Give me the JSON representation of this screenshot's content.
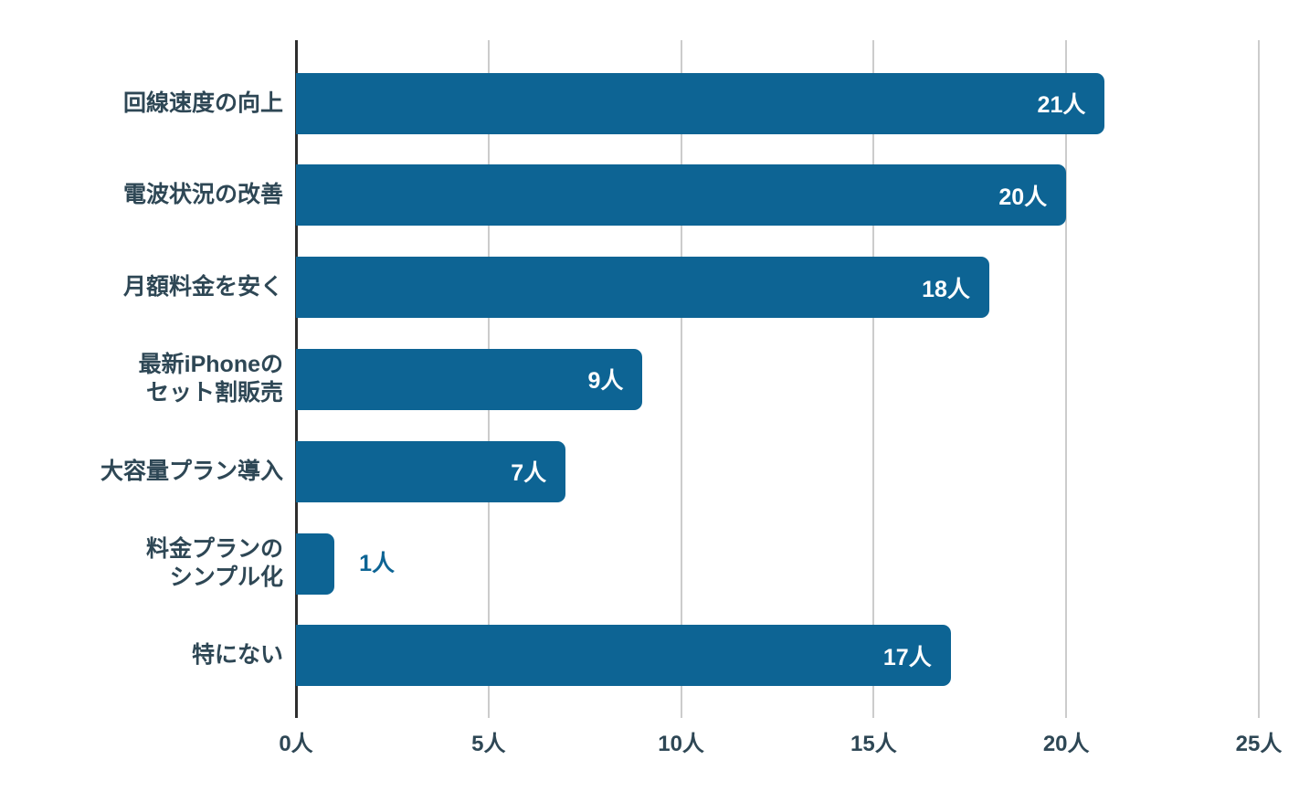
{
  "chart_data": {
    "type": "bar",
    "orientation": "horizontal",
    "title": "",
    "xlabel": "",
    "ylabel": "",
    "categories": [
      "回線速度の向上",
      "電波状況の改善",
      "月額料金を安く",
      "最新iPhoneの\nセット割販売",
      "大容量プラン導入",
      "料金プランの\nシンプル化",
      "特にない"
    ],
    "values": [
      21,
      20,
      18,
      9,
      7,
      1,
      17
    ],
    "value_labels": [
      "21人",
      "20人",
      "18人",
      "9人",
      "7人",
      "1人",
      "17人"
    ],
    "unit_suffix": "人",
    "xlim": [
      0,
      25
    ],
    "x_tick_step": 5,
    "x_tick_labels": [
      "0人",
      "5人",
      "10人",
      "15人",
      "20人",
      "25人"
    ],
    "grid": true,
    "legend": "none",
    "colors": {
      "bar": "#0d6494",
      "value_label_inside": "#ffffff",
      "value_label_outside": "#0d6494",
      "category_text": "#2e4755",
      "tick_text": "#2e4755",
      "gridline": "#cccccc",
      "zero_axis": "#2e2e2e",
      "background": "#ffffff"
    }
  }
}
